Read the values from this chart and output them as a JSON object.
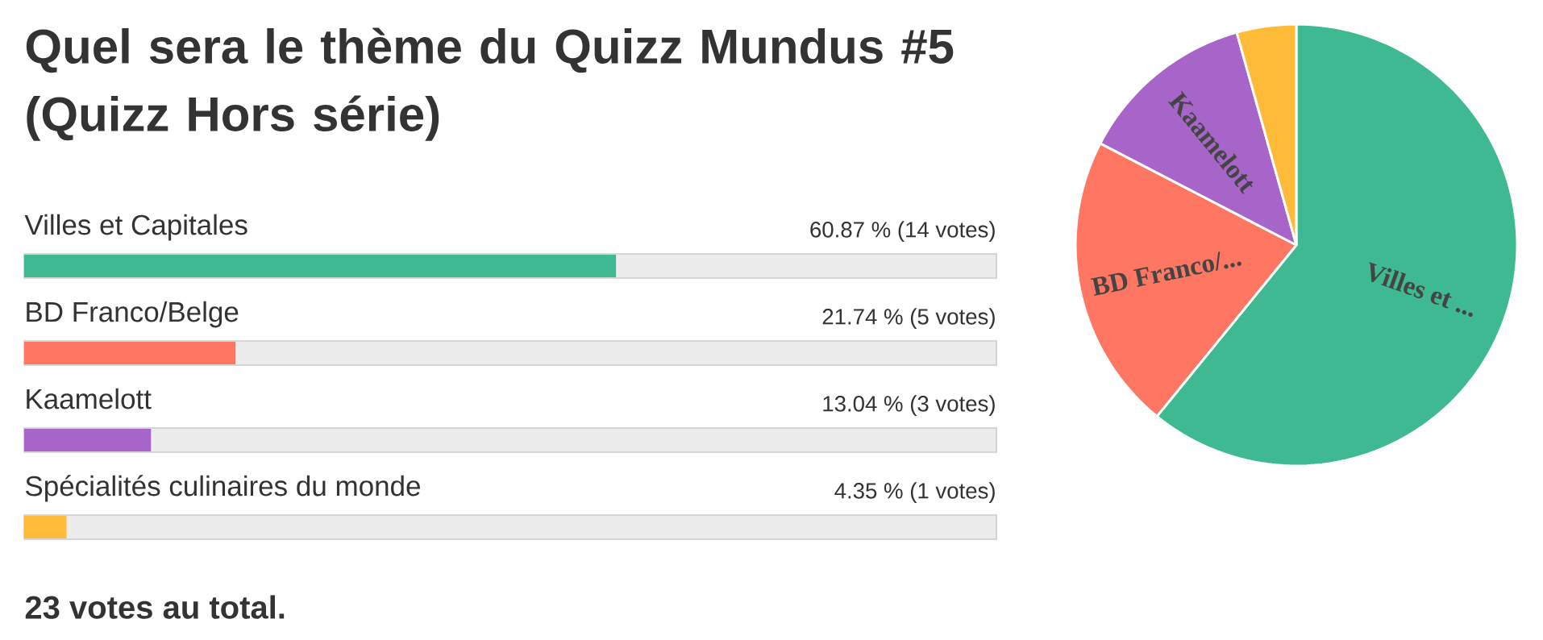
{
  "chart_data": [
    {
      "type": "bar",
      "orientation": "horizontal",
      "title": "Quel sera le thème du Quizz Mundus #5 (Quizz Hors série)",
      "categories": [
        "Villes et Capitales",
        "BD Franco/Belge",
        "Kaamelott",
        "Spécialités culinaires du monde"
      ],
      "values": [
        60.87,
        21.74,
        13.04,
        4.35
      ],
      "colors": [
        "#3eb991",
        "#ff7663",
        "#a865c9",
        "#ffbb38"
      ],
      "value_labels": [
        "60.87 % (14 votes)",
        "21.74 % (5 votes)",
        "13.04 % (3 votes)",
        "4.35 % (1 votes)"
      ],
      "xlim": [
        0,
        100
      ],
      "annotations": [
        "23 votes au total."
      ]
    },
    {
      "type": "pie",
      "categories": [
        "Villes et ...",
        "BD Franco/...",
        "Kaamelott",
        null
      ],
      "values": [
        60.87,
        21.74,
        13.04,
        4.35
      ],
      "colors": [
        "#3eb991",
        "#ff7663",
        "#a865c9",
        "#ffbb38"
      ]
    }
  ]
}
